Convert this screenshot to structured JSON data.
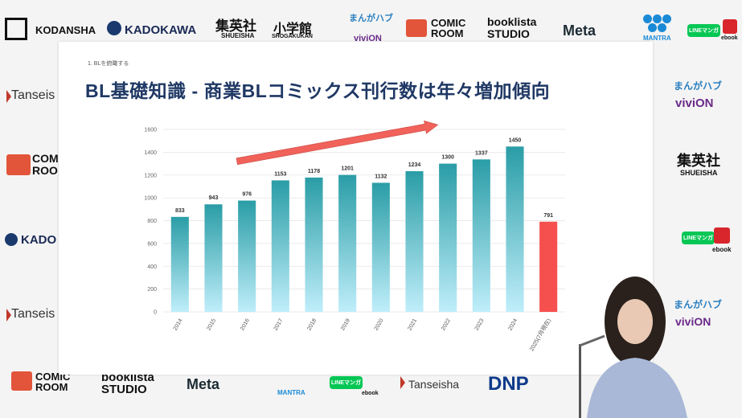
{
  "backdrop_logos": {
    "kodansha": "KODANSHA",
    "kadokawa": "KADOKAWA",
    "shueisha_jp": "集英社",
    "shueisha_en": "SHUEISHA",
    "shogakukan_jp": "小学館",
    "shogakukan_en": "SHOGAKUKAN",
    "manga_hub": "まんがハブ",
    "vivion": "viviON",
    "comic_room": "COMIC ROOM",
    "booklista": "booklista STUDIO",
    "meta": "Meta",
    "mantra": "MANTRA",
    "line_manga": "LINEマンガ",
    "ebook": "ebook",
    "tanseisha": "Tanseisha",
    "dnp": "DNP",
    "comic_short": "COMIC ROO",
    "kado_short": "KADO",
    "tanseis_short": "Tanseis",
    "tanseis_short2": "Tanseis"
  },
  "slide": {
    "section": "1. BLを俯瞰する",
    "title": "BL基礎知識 - 商業BLコミックス刊行数は年々増加傾向"
  },
  "chart_data": {
    "type": "bar",
    "categories": [
      "2014",
      "2015",
      "2016",
      "2017",
      "2018",
      "2019",
      "2020",
      "2021",
      "2022",
      "2023",
      "2024",
      "2025(7月現在)"
    ],
    "values": [
      833,
      943,
      976,
      1153,
      1178,
      1201,
      1132,
      1234,
      1300,
      1337,
      1450,
      791
    ],
    "value_labels": [
      "833",
      "943",
      "976",
      "1153",
      "1178",
      "1201",
      "1132",
      "1234",
      "1300",
      "1337",
      "1450",
      "791"
    ],
    "highlight_index": 11,
    "ylim": [
      0,
      1600
    ],
    "yticks": [
      "0",
      "200",
      "400",
      "600",
      "800",
      "1000",
      "1200",
      "1400",
      "1600"
    ],
    "ytick_values": [
      0,
      200,
      400,
      600,
      800,
      1000,
      1200,
      1400,
      1600
    ],
    "grid": true,
    "annotation": "upward-trend-arrow",
    "colors": {
      "bar_top": "#2a9da6",
      "bar_bottom": "#bfeefa",
      "highlight": "#f5504e",
      "arrow": "#f0625a",
      "grid": "#e3e3e3"
    }
  }
}
